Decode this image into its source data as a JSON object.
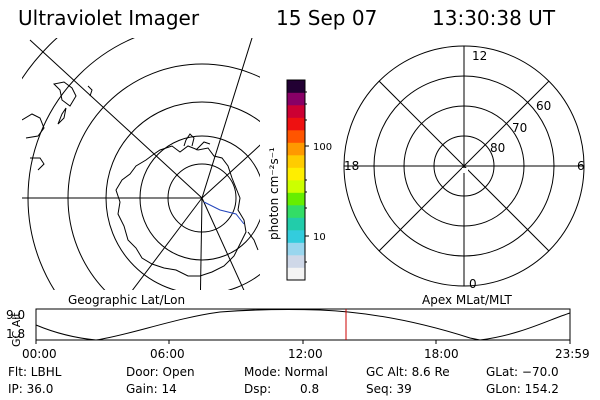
{
  "header": {
    "title": "Ultraviolet Imager",
    "date": "15 Sep 07",
    "time": "13:30:38 UT"
  },
  "colorbar": {
    "unit_label": "photon cm⁻²s⁻¹",
    "tick_high": "100",
    "tick_low": "10",
    "colors": [
      "#f4f4f4",
      "#cfd8e8",
      "#99d6ee",
      "#33ccdd",
      "#22ccaa",
      "#33dd66",
      "#66ee00",
      "#ccff00",
      "#ffee00",
      "#ffcc00",
      "#ff9900",
      "#ff5500",
      "#ee1111",
      "#cc0033",
      "#880066",
      "#220033"
    ]
  },
  "left_map": {
    "caption": "Geographic Lat/Lon"
  },
  "right_map": {
    "caption": "Apex MLat/MLT",
    "mlt_labels": {
      "top": "12",
      "left": "18",
      "right": "6",
      "bottom": "0"
    },
    "lat_labels": [
      "60",
      "70",
      "80"
    ]
  },
  "altitude_plot": {
    "ylabel": "GC Alt",
    "ytick_top": "9.0",
    "ytick_bottom": "1.8",
    "xticks": [
      "00:00",
      "06:00",
      "12:00",
      "18:00",
      "23:59"
    ],
    "marker_color": "#cc0000"
  },
  "status": {
    "row1": [
      {
        "key": "flt",
        "text": "Flt: LBHL"
      },
      {
        "key": "door",
        "text": "Door: Open"
      },
      {
        "key": "mode",
        "text": "Mode: Normal"
      },
      {
        "key": "gcalt",
        "text": "GC Alt: 8.6 Re"
      },
      {
        "key": "glat",
        "text": "GLat: −70.0"
      }
    ],
    "row2": [
      {
        "key": "ip",
        "text": "IP: 36.0"
      },
      {
        "key": "gain",
        "text": "Gain: 14"
      },
      {
        "key": "dsp_label",
        "text": "Dsp:"
      },
      {
        "key": "dsp_value",
        "text": "0.8"
      },
      {
        "key": "seq",
        "text": "Seq: 39"
      },
      {
        "key": "glon",
        "text": "GLon: 154.2"
      }
    ]
  }
}
